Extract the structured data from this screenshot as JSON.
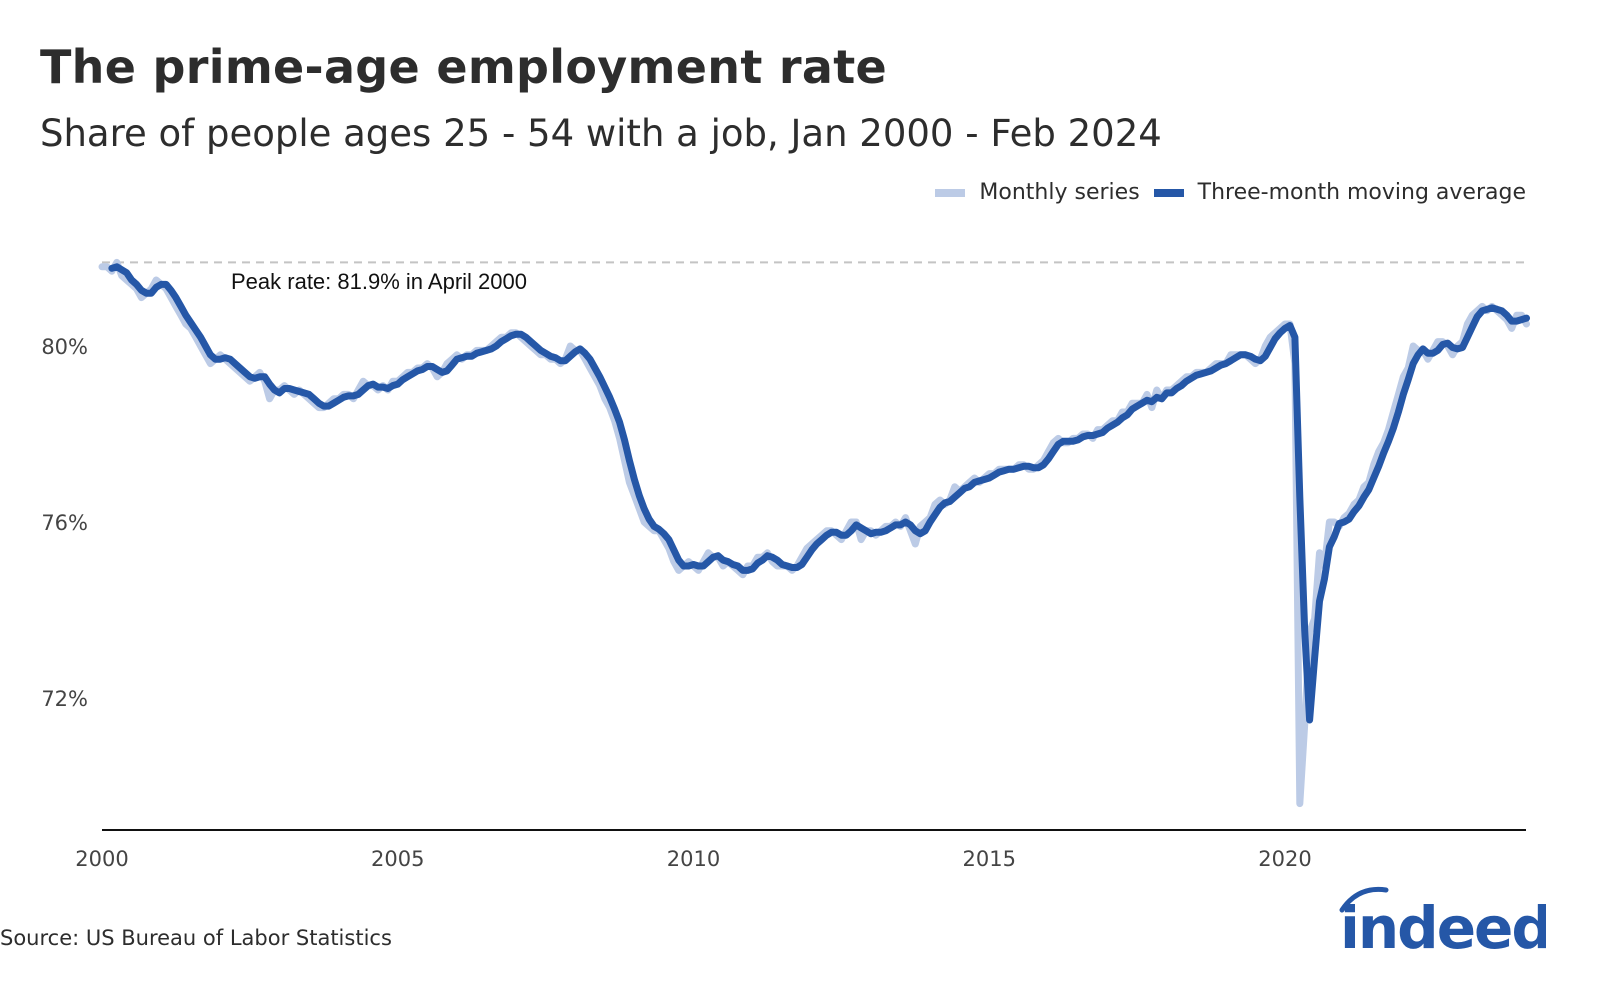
{
  "chart_data": {
    "type": "line",
    "title": "The prime-age employment rate",
    "subtitle": "Share of people ages 25 - 54 with a job, Jan 2000 - Feb 2024",
    "xlabel": "",
    "ylabel": "",
    "x_ticks": [
      "2000",
      "2005",
      "2010",
      "2015",
      "2020"
    ],
    "y_ticks": [
      "72%",
      "76%",
      "80%"
    ],
    "ylim": [
      69,
      82
    ],
    "xlim": [
      "2000-01",
      "2024-02"
    ],
    "grid": false,
    "legend_position": "top-right",
    "colors": {
      "monthly": "#bccbe6",
      "moving_average": "#2557a7",
      "reference": "#c4c4c4"
    },
    "reference_line": {
      "value": 81.9,
      "label": "Peak rate: 81.9% in April 2000",
      "style": "dashed"
    },
    "series": [
      {
        "name": "Monthly series",
        "unit": "%",
        "monthly_by_year": {
          "2000": [
            81.8,
            81.8,
            81.7,
            81.9,
            81.6,
            81.5,
            81.4,
            81.3,
            81.1,
            81.2,
            81.3,
            81.5
          ],
          "2001": [
            81.4,
            81.3,
            81.1,
            80.9,
            80.7,
            80.5,
            80.4,
            80.2,
            80.0,
            79.8,
            79.6,
            79.7
          ],
          "2002": [
            79.8,
            79.7,
            79.6,
            79.5,
            79.4,
            79.3,
            79.2,
            79.3,
            79.4,
            79.2,
            78.8,
            79.0
          ],
          "2003": [
            79.0,
            79.1,
            79.0,
            78.9,
            79.0,
            78.9,
            78.8,
            78.7,
            78.6,
            78.6,
            78.7,
            78.8
          ],
          "2004": [
            78.8,
            78.9,
            78.9,
            78.8,
            79.0,
            79.2,
            79.1,
            79.1,
            79.0,
            79.1,
            79.0,
            79.2
          ],
          "2005": [
            79.2,
            79.3,
            79.4,
            79.4,
            79.5,
            79.5,
            79.6,
            79.5,
            79.3,
            79.4,
            79.6,
            79.7
          ],
          "2006": [
            79.8,
            79.7,
            79.8,
            79.8,
            79.9,
            79.9,
            79.9,
            80.0,
            80.1,
            80.2,
            80.2,
            80.3
          ],
          "2007": [
            80.3,
            80.2,
            80.1,
            80.0,
            79.9,
            79.8,
            79.8,
            79.7,
            79.7,
            79.6,
            79.7,
            80.0
          ],
          "2008": [
            79.9,
            79.9,
            79.7,
            79.5,
            79.3,
            79.1,
            78.8,
            78.6,
            78.3,
            77.9,
            77.4,
            76.9
          ],
          "2009": [
            76.6,
            76.3,
            76.0,
            75.9,
            75.8,
            75.8,
            75.6,
            75.4,
            75.1,
            74.9,
            75.0,
            75.1
          ],
          "2010": [
            75.0,
            74.9,
            75.1,
            75.3,
            75.2,
            75.2,
            75.0,
            75.1,
            75.0,
            74.9,
            74.8,
            75.0
          ],
          "2011": [
            75.0,
            75.2,
            75.2,
            75.3,
            75.1,
            75.0,
            75.0,
            75.0,
            74.9,
            75.0,
            75.2,
            75.4
          ],
          "2012": [
            75.5,
            75.6,
            75.7,
            75.8,
            75.8,
            75.7,
            75.6,
            75.8,
            76.0,
            76.0,
            75.6,
            75.8
          ],
          "2013": [
            75.8,
            75.7,
            75.8,
            75.9,
            75.9,
            76.0,
            75.9,
            76.1,
            75.8,
            75.5,
            75.9,
            76.0
          ],
          "2014": [
            76.1,
            76.4,
            76.5,
            76.4,
            76.5,
            76.8,
            76.7,
            76.8,
            76.9,
            77.0,
            76.9,
            77.0
          ],
          "2015": [
            77.1,
            77.1,
            77.2,
            77.2,
            77.2,
            77.2,
            77.3,
            77.3,
            77.2,
            77.2,
            77.3,
            77.4
          ],
          "2016": [
            77.6,
            77.8,
            77.9,
            77.8,
            77.8,
            77.9,
            77.9,
            78.0,
            78.0,
            77.9,
            78.1,
            78.1
          ],
          "2017": [
            78.2,
            78.3,
            78.3,
            78.5,
            78.5,
            78.7,
            78.7,
            78.7,
            78.9,
            78.6,
            79.0,
            78.8
          ],
          "2018": [
            79.0,
            79.0,
            79.1,
            79.2,
            79.3,
            79.3,
            79.4,
            79.4,
            79.4,
            79.5,
            79.6,
            79.6
          ],
          "2019": [
            79.6,
            79.8,
            79.8,
            79.8,
            79.8,
            79.7,
            79.6,
            79.7,
            80.0,
            80.2,
            80.3,
            80.4
          ],
          "2020": [
            80.5,
            80.5,
            79.6,
            69.6,
            71.4,
            73.5,
            73.8,
            75.3,
            75.0,
            76.0,
            76.0,
            75.9
          ],
          "2021": [
            76.1,
            76.2,
            76.4,
            76.5,
            76.8,
            76.9,
            77.3,
            77.6,
            77.8,
            78.1,
            78.5,
            78.9
          ],
          "2022": [
            79.3,
            79.5,
            80.0,
            79.9,
            79.9,
            79.7,
            79.9,
            80.1,
            80.1,
            80.0,
            79.8,
            80.0
          ],
          "2023": [
            80.1,
            80.5,
            80.7,
            80.8,
            80.9,
            80.8,
            80.9,
            80.8,
            80.7,
            80.6,
            80.4,
            80.7
          ],
          "2024": [
            80.7,
            80.5
          ]
        }
      },
      {
        "name": "Three-month moving average",
        "unit": "%",
        "method": "trailing 3-month mean of the monthly series"
      }
    ],
    "source": "Source: US Bureau of Labor Statistics",
    "logo_text": "indeed"
  }
}
